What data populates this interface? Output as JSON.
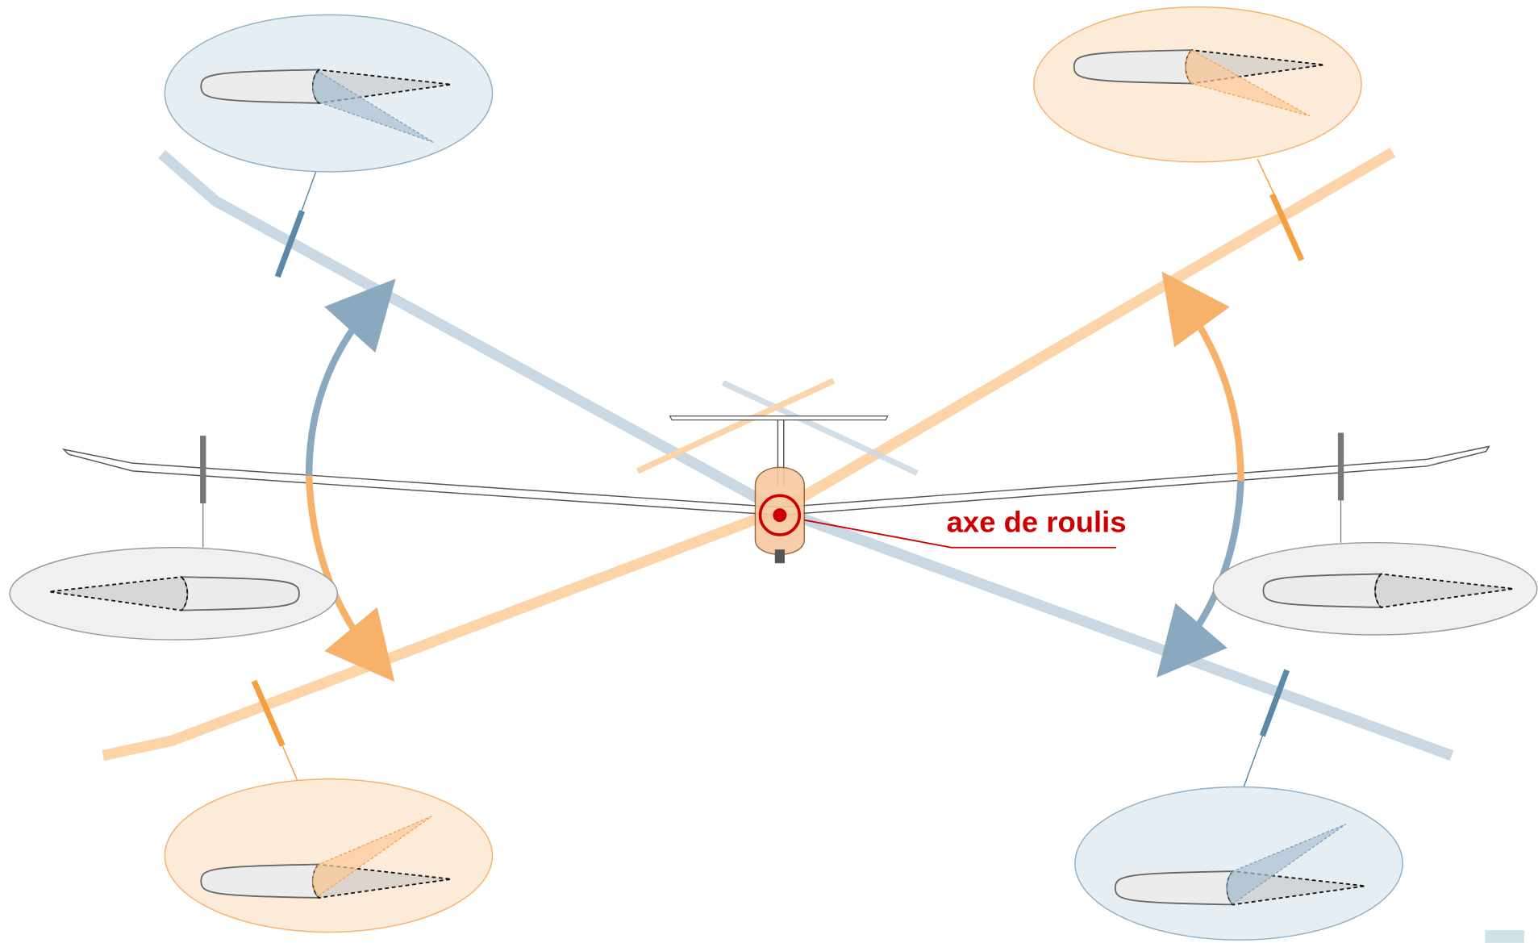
{
  "label": "axe de roulis"
}
